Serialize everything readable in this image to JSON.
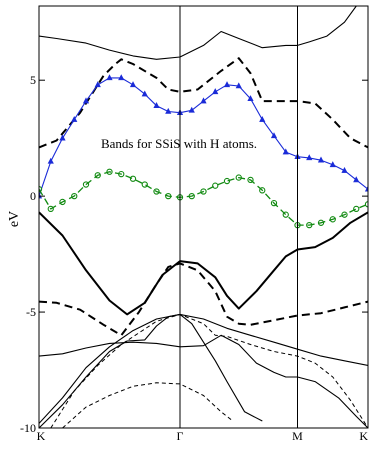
{
  "chart_data": {
    "type": "line",
    "annotation": "Bands for SSiS with H atoms.",
    "xlabel": "",
    "ylabel": "eV",
    "ylim": [
      -10,
      8.2
    ],
    "xlim": [
      0,
      2.8
    ],
    "x_ticks": [
      {
        "label": "K",
        "x": 0
      },
      {
        "label": "Γ",
        "x": 1.2
      },
      {
        "label": "M",
        "x": 2.2
      },
      {
        "label": "K",
        "x": 2.8
      }
    ],
    "y_ticks": [
      -10,
      -5,
      0,
      5
    ],
    "vertical_lines_at": [
      1.2,
      2.2
    ],
    "series": [
      {
        "style": "solid-thin",
        "color": "#000000",
        "values": [
          [
            0,
            6.9
          ],
          [
            0.15,
            6.8
          ],
          [
            0.4,
            6.6
          ],
          [
            0.6,
            6.3
          ],
          [
            0.8,
            6.05
          ],
          [
            1.0,
            5.9
          ],
          [
            1.2,
            6.0
          ],
          [
            1.4,
            6.5
          ],
          [
            1.55,
            7.1
          ],
          [
            1.7,
            6.8
          ],
          [
            1.9,
            6.4
          ],
          [
            2.0,
            6.45
          ],
          [
            2.1,
            6.5
          ],
          [
            2.2,
            6.5
          ],
          [
            2.3,
            6.65
          ],
          [
            2.45,
            6.9
          ],
          [
            2.6,
            7.5
          ],
          [
            2.7,
            8.2
          ]
        ]
      },
      {
        "style": "dashed-thick",
        "color": "#000000",
        "values": [
          [
            0,
            2.1
          ],
          [
            0.15,
            2.4
          ],
          [
            0.35,
            3.6
          ],
          [
            0.55,
            5.2
          ],
          [
            0.65,
            5.7
          ],
          [
            0.7,
            5.9
          ],
          [
            0.8,
            5.7
          ],
          [
            1.0,
            5.1
          ],
          [
            1.1,
            4.6
          ],
          [
            1.2,
            4.5
          ],
          [
            1.35,
            4.6
          ],
          [
            1.55,
            5.4
          ],
          [
            1.7,
            5.95
          ],
          [
            1.8,
            5.3
          ],
          [
            1.9,
            4.1
          ],
          [
            2.0,
            4.1
          ],
          [
            2.2,
            4.1
          ],
          [
            2.35,
            4.0
          ],
          [
            2.5,
            3.3
          ],
          [
            2.65,
            2.5
          ],
          [
            2.8,
            2.1
          ]
        ]
      },
      {
        "style": "blue-triangles",
        "color": "#1a2bd8",
        "values": [
          [
            0,
            0
          ],
          [
            0.1,
            1.5
          ],
          [
            0.2,
            2.5
          ],
          [
            0.3,
            3.3
          ],
          [
            0.4,
            4.1
          ],
          [
            0.5,
            4.8
          ],
          [
            0.6,
            5.1
          ],
          [
            0.7,
            5.1
          ],
          [
            0.8,
            4.8
          ],
          [
            0.9,
            4.4
          ],
          [
            1.0,
            3.9
          ],
          [
            1.1,
            3.65
          ],
          [
            1.2,
            3.6
          ],
          [
            1.3,
            3.7
          ],
          [
            1.4,
            4.1
          ],
          [
            1.5,
            4.5
          ],
          [
            1.6,
            4.8
          ],
          [
            1.7,
            4.75
          ],
          [
            1.8,
            4.2
          ],
          [
            1.9,
            3.3
          ],
          [
            2.0,
            2.6
          ],
          [
            2.1,
            1.9
          ],
          [
            2.2,
            1.7
          ],
          [
            2.3,
            1.65
          ],
          [
            2.4,
            1.55
          ],
          [
            2.5,
            1.35
          ],
          [
            2.6,
            1.1
          ],
          [
            2.7,
            0.7
          ],
          [
            2.8,
            0.3
          ]
        ]
      },
      {
        "style": "green-circles",
        "color": "#118a11",
        "values": [
          [
            0,
            0.3
          ],
          [
            0.1,
            -0.55
          ],
          [
            0.2,
            -0.25
          ],
          [
            0.3,
            0
          ],
          [
            0.4,
            0.5
          ],
          [
            0.5,
            0.9
          ],
          [
            0.6,
            1.05
          ],
          [
            0.7,
            0.95
          ],
          [
            0.8,
            0.75
          ],
          [
            0.9,
            0.5
          ],
          [
            1.0,
            0.2
          ],
          [
            1.1,
            0
          ],
          [
            1.2,
            -0.05
          ],
          [
            1.3,
            0
          ],
          [
            1.4,
            0.2
          ],
          [
            1.5,
            0.45
          ],
          [
            1.6,
            0.65
          ],
          [
            1.7,
            0.8
          ],
          [
            1.8,
            0.7
          ],
          [
            1.9,
            0.25
          ],
          [
            2.0,
            -0.3
          ],
          [
            2.1,
            -0.8
          ],
          [
            2.2,
            -1.25
          ],
          [
            2.3,
            -1.25
          ],
          [
            2.4,
            -1.15
          ],
          [
            2.5,
            -1.0
          ],
          [
            2.6,
            -0.8
          ],
          [
            2.7,
            -0.55
          ],
          [
            2.8,
            -0.35
          ]
        ]
      },
      {
        "style": "solid-thick",
        "color": "#000000",
        "values": [
          [
            0,
            -0.7
          ],
          [
            0.2,
            -1.7
          ],
          [
            0.4,
            -3.2
          ],
          [
            0.6,
            -4.5
          ],
          [
            0.75,
            -5.1
          ],
          [
            0.9,
            -4.6
          ],
          [
            1.05,
            -3.4
          ],
          [
            1.2,
            -2.8
          ],
          [
            1.35,
            -2.9
          ],
          [
            1.5,
            -3.5
          ],
          [
            1.6,
            -4.3
          ],
          [
            1.7,
            -4.85
          ],
          [
            1.85,
            -4.1
          ],
          [
            2.0,
            -3.2
          ],
          [
            2.1,
            -2.6
          ],
          [
            2.2,
            -2.3
          ],
          [
            2.35,
            -2.2
          ],
          [
            2.5,
            -1.8
          ],
          [
            2.65,
            -1.15
          ],
          [
            2.8,
            -0.7
          ]
        ]
      },
      {
        "style": "dashed-thick",
        "color": "#000000",
        "values": [
          [
            0,
            -4.55
          ],
          [
            0.15,
            -4.6
          ],
          [
            0.35,
            -4.9
          ],
          [
            0.55,
            -5.55
          ],
          [
            0.7,
            -6.0
          ],
          [
            0.85,
            -5.0
          ],
          [
            1.0,
            -3.8
          ],
          [
            1.1,
            -3.05
          ],
          [
            1.2,
            -2.9
          ],
          [
            1.35,
            -3.2
          ],
          [
            1.5,
            -4.1
          ],
          [
            1.6,
            -5.2
          ],
          [
            1.7,
            -5.5
          ],
          [
            1.8,
            -5.55
          ],
          [
            2.0,
            -5.35
          ],
          [
            2.2,
            -5.15
          ],
          [
            2.4,
            -5.05
          ],
          [
            2.6,
            -4.8
          ],
          [
            2.8,
            -4.55
          ]
        ]
      },
      {
        "style": "solid-thin",
        "color": "#000000",
        "values": [
          [
            0,
            -9.8
          ],
          [
            0.2,
            -8.7
          ],
          [
            0.4,
            -7.4
          ],
          [
            0.6,
            -6.5
          ],
          [
            0.8,
            -5.8
          ],
          [
            1.0,
            -5.3
          ],
          [
            1.2,
            -5.1
          ],
          [
            1.4,
            -5.3
          ],
          [
            1.6,
            -5.7
          ],
          [
            1.8,
            -6.0
          ],
          [
            2.0,
            -6.3
          ],
          [
            2.2,
            -6.6
          ],
          [
            2.4,
            -6.9
          ],
          [
            2.6,
            -7.1
          ],
          [
            2.8,
            -7.3
          ]
        ]
      },
      {
        "style": "solid-thin",
        "color": "#000000",
        "values": [
          [
            0,
            -6.9
          ],
          [
            0.2,
            -6.8
          ],
          [
            0.4,
            -6.55
          ],
          [
            0.6,
            -6.35
          ],
          [
            0.8,
            -6.3
          ],
          [
            1.0,
            -6.35
          ],
          [
            1.2,
            -6.5
          ],
          [
            1.4,
            -6.45
          ],
          [
            1.55,
            -6.0
          ],
          [
            1.7,
            -6.4
          ],
          [
            1.85,
            -7.2
          ],
          [
            2.0,
            -7.6
          ],
          [
            2.1,
            -7.8
          ],
          [
            2.2,
            -7.8
          ],
          [
            2.35,
            -8.0
          ],
          [
            2.55,
            -8.7
          ],
          [
            2.7,
            -9.5
          ],
          [
            2.8,
            -10
          ]
        ]
      },
      {
        "style": "solid-thin",
        "color": "#000000",
        "values": [
          [
            0,
            -10
          ],
          [
            0.2,
            -9.0
          ],
          [
            0.4,
            -7.8
          ],
          [
            0.6,
            -6.7
          ],
          [
            0.75,
            -6.25
          ],
          [
            0.9,
            -6.2
          ],
          [
            1.0,
            -5.6
          ],
          [
            1.1,
            -5.2
          ],
          [
            1.2,
            -5.1
          ],
          [
            1.3,
            -5.5
          ],
          [
            1.4,
            -6.3
          ],
          [
            1.5,
            -7.1
          ],
          [
            1.6,
            -8.0
          ],
          [
            1.75,
            -9.3
          ],
          [
            1.9,
            -9.7
          ]
        ]
      },
      {
        "style": "dashed-thin",
        "color": "#000000",
        "values": [
          [
            0.1,
            -10
          ],
          [
            0.3,
            -8.4
          ],
          [
            0.5,
            -7.3
          ],
          [
            0.7,
            -6.4
          ],
          [
            0.85,
            -5.9
          ],
          [
            1.0,
            -5.4
          ],
          [
            1.2,
            -5.1
          ],
          [
            1.4,
            -5.5
          ],
          [
            1.5,
            -6.0
          ],
          [
            1.6,
            -6.05
          ],
          [
            1.8,
            -6.4
          ],
          [
            2.0,
            -6.7
          ],
          [
            2.2,
            -6.9
          ],
          [
            2.35,
            -7.2
          ],
          [
            2.5,
            -7.8
          ],
          [
            2.65,
            -8.8
          ],
          [
            2.8,
            -10
          ]
        ]
      },
      {
        "style": "dashed-thin",
        "color": "#000000",
        "values": [
          [
            0.2,
            -10
          ],
          [
            0.4,
            -9.1
          ],
          [
            0.6,
            -8.6
          ],
          [
            0.8,
            -8.2
          ],
          [
            1.0,
            -8.05
          ],
          [
            1.2,
            -8.1
          ],
          [
            1.4,
            -8.6
          ],
          [
            1.55,
            -9.3
          ],
          [
            1.65,
            -9.7
          ]
        ]
      }
    ]
  }
}
